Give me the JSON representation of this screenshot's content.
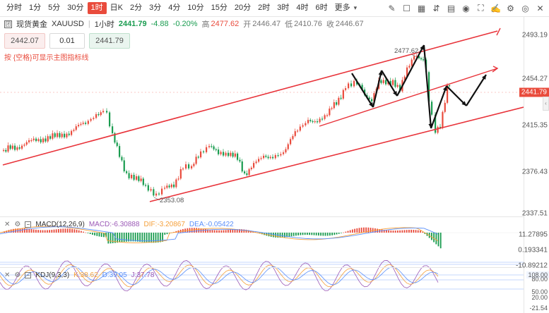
{
  "toolbar": {
    "timeframes": [
      "分时",
      "1分",
      "5分",
      "30分",
      "1时",
      "日K",
      "2分",
      "3分",
      "4分",
      "10分",
      "15分",
      "20分",
      "2时",
      "3时",
      "4时",
      "6时",
      "更多"
    ],
    "active_index": 4,
    "more_caret": "▾",
    "icons": [
      "pencil-icon",
      "square-icon",
      "grid-icon",
      "compare-icon",
      "layout-icon",
      "camera-icon",
      "fullscreen-icon",
      "edit-icon",
      "settings-icon",
      "eye-icon",
      "close-icon"
    ]
  },
  "info": {
    "symbol_icon_text": "团",
    "symbol_name": "现货黄金",
    "symbol_code": "XAUUSD",
    "interval": "1小时",
    "price": "2441.79",
    "change": "-4.88",
    "change_pct": "-0.20%",
    "high_label": "高",
    "high_value": "2477.62",
    "open_label": "开",
    "open_value": "2446.47",
    "low_label": "低",
    "low_value": "2410.76",
    "close_label": "收",
    "close_value": "2446.67"
  },
  "trade": {
    "sell": "2442.07",
    "qty": "0.01",
    "buy": "2441.79"
  },
  "hint": "按 {空格}可显示主图指标线",
  "price_axis": {
    "ticks": [
      "2493.19",
      "2454.27",
      "2415.35",
      "2376.43",
      "2337.51"
    ],
    "current": "2441.79"
  },
  "annotations": {
    "high_label": "2477.62",
    "low_label": "2353.08"
  },
  "macd": {
    "title": "MACD(12,26,9)",
    "macd_label": "MACD:",
    "macd_value": "-6.30888",
    "dif_label": "DIF:",
    "dif_value": "-3.20867",
    "dea_label": "DEA:",
    "dea_value": "-0.05422",
    "ticks": [
      "11.27895",
      "0.193341",
      "-10.89212"
    ]
  },
  "kdj": {
    "title": "KDJ(9,3,3)",
    "k_label": "K:",
    "k_value": "38.62",
    "d_label": "D:",
    "d_value": "39.05",
    "j_label": "J:",
    "j_value": "37.78",
    "ticks": [
      "100.00",
      "80.00",
      "50.00",
      "20.00",
      "-21.54",
      "108.00"
    ]
  },
  "colors": {
    "up": "#e94b3c",
    "down": "#1a9c50",
    "trend": "#e8333a",
    "dif": "#f5a03a",
    "dea": "#5b8ff9",
    "k": "#f5a03a",
    "d": "#5b8ff9",
    "j": "#9b59b6"
  }
}
